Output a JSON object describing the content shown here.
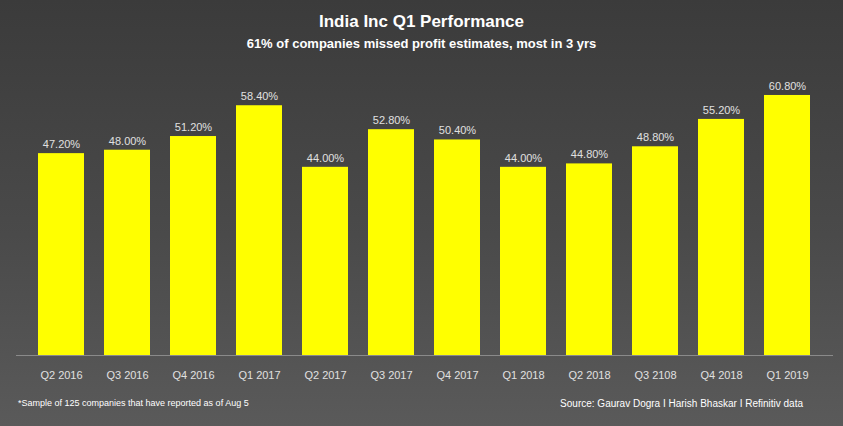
{
  "chart_data": {
    "type": "bar",
    "title": "India Inc Q1 Performance",
    "subtitle": "61% of companies missed profit estimates, most in 3 yrs",
    "annotations": [
      "*Sample of 125 companies that have reported as of Aug 5",
      "Source: Gaurav Dogra I Harish Bhaskar I Refinitiv data"
    ],
    "categories": [
      "Q2 2016",
      "Q3 2016",
      "Q4 2016",
      "Q1 2017",
      "Q2 2017",
      "Q3 2017",
      "Q4 2017",
      "Q1 2018",
      "Q2 2018",
      "Q3 2108",
      "Q4 2018",
      "Q1 2019"
    ],
    "values": [
      47.2,
      48.0,
      51.2,
      58.4,
      44.0,
      52.8,
      50.4,
      44.0,
      44.8,
      48.8,
      55.2,
      60.8
    ],
    "value_labels": [
      "47.20%",
      "48.00%",
      "51.20%",
      "58.40%",
      "44.00%",
      "52.80%",
      "50.40%",
      "44.00%",
      "44.80%",
      "48.80%",
      "55.20%",
      "60.80%"
    ],
    "color": "#ffff00",
    "ylim": [
      0,
      64.3
    ],
    "yticks": [],
    "grid": false,
    "data_labels": true,
    "tick_labels": "x"
  }
}
